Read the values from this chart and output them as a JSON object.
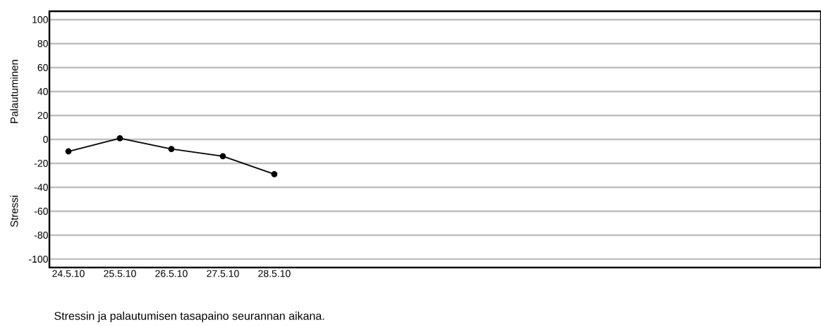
{
  "chart_data": {
    "type": "line",
    "categories": [
      "24.5.10",
      "25.5.10",
      "26.5.10",
      "27.5.10",
      "28.5.10",
      null,
      null,
      null,
      null,
      null,
      null,
      null,
      null,
      null,
      null
    ],
    "values": [
      -10,
      1,
      -8,
      -14,
      -29,
      null,
      null,
      null,
      null,
      null,
      null,
      null,
      null,
      null,
      null
    ],
    "color": "#000000",
    "ylabel": "Palautuminen",
    "annotations": [
      "Stressi",
      "Stressin ja palautumisen tasapaino seurannan aikana."
    ],
    "ylim": [
      -107,
      107
    ],
    "yticks": [
      -100,
      -80,
      -60,
      -40,
      -20,
      0,
      20,
      40,
      60,
      80,
      100
    ],
    "grid": "y",
    "marker": "circle",
    "line_style": "solid"
  }
}
